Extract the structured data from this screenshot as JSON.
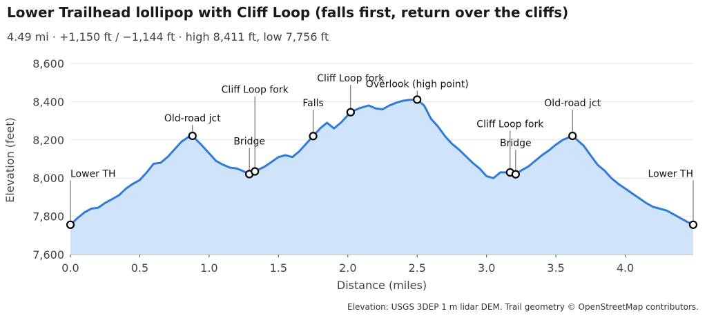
{
  "chart_data": {
    "type": "area",
    "title": "Lower Trailhead lollipop with Cliff Loop (falls first, return over the cliffs)",
    "subtitle": "4.49 mi · +1,150 ft / −1,144 ft · high 8,411 ft, low 7,756 ft",
    "xlabel": "Distance (miles)",
    "ylabel": "Elevation (feet)",
    "xlim": [
      0,
      4.49
    ],
    "ylim": [
      7600,
      8600
    ],
    "xticks": [
      0.0,
      0.5,
      1.0,
      1.5,
      2.0,
      2.5,
      3.0,
      3.5,
      4.0
    ],
    "xtick_labels": [
      "0.0",
      "0.5",
      "1.0",
      "1.5",
      "2.0",
      "2.5",
      "3.0",
      "3.5",
      "4.0"
    ],
    "yticks": [
      7600,
      7800,
      8000,
      8200,
      8400,
      8600
    ],
    "ytick_labels": [
      "7,600",
      "7,800",
      "8,000",
      "8,200",
      "8,400",
      "8,600"
    ],
    "grid": "horizontal",
    "footer": "Elevation: USGS 3DEP 1 m lidar DEM.  Trail geometry © OpenStreetMap contributors.",
    "colors": {
      "line": "#2f7bd6",
      "fill": "#cfe3fa",
      "grid": "#e6e6e6"
    },
    "series": [
      {
        "x": [
          0.0,
          0.05,
          0.1,
          0.15,
          0.2,
          0.25,
          0.3,
          0.35,
          0.4,
          0.45,
          0.5,
          0.55,
          0.6,
          0.65,
          0.7,
          0.75,
          0.8,
          0.85,
          0.88,
          0.95,
          1.0,
          1.05,
          1.1,
          1.15,
          1.2,
          1.25,
          1.29,
          1.33,
          1.4,
          1.45,
          1.5,
          1.55,
          1.6,
          1.65,
          1.7,
          1.75,
          1.8,
          1.85,
          1.9,
          1.95,
          2.02,
          2.08,
          2.15,
          2.2,
          2.25,
          2.3,
          2.35,
          2.4,
          2.45,
          2.5,
          2.55,
          2.6,
          2.65,
          2.7,
          2.75,
          2.8,
          2.85,
          2.9,
          2.95,
          3.0,
          3.05,
          3.1,
          3.17,
          3.21,
          3.25,
          3.3,
          3.35,
          3.4,
          3.45,
          3.5,
          3.55,
          3.62,
          3.7,
          3.75,
          3.8,
          3.85,
          3.9,
          3.95,
          4.0,
          4.05,
          4.1,
          4.15,
          4.2,
          4.25,
          4.3,
          4.35,
          4.4,
          4.45,
          4.49
        ],
        "y": [
          7756,
          7790,
          7820,
          7840,
          7845,
          7870,
          7890,
          7910,
          7945,
          7970,
          7990,
          8030,
          8075,
          8080,
          8110,
          8150,
          8190,
          8215,
          8221,
          8170,
          8130,
          8090,
          8070,
          8055,
          8050,
          8035,
          8021,
          8035,
          8060,
          8085,
          8110,
          8120,
          8110,
          8140,
          8180,
          8220,
          8260,
          8290,
          8260,
          8290,
          8345,
          8365,
          8380,
          8365,
          8360,
          8380,
          8395,
          8405,
          8410,
          8411,
          8380,
          8310,
          8270,
          8220,
          8180,
          8150,
          8115,
          8080,
          8050,
          8010,
          8000,
          8030,
          8030,
          8020,
          8040,
          8060,
          8090,
          8120,
          8145,
          8175,
          8200,
          8221,
          8170,
          8120,
          8070,
          8040,
          8000,
          7970,
          7945,
          7920,
          7895,
          7870,
          7850,
          7840,
          7830,
          7810,
          7790,
          7770,
          7756
        ]
      }
    ],
    "annotations": [
      {
        "label": "Lower TH",
        "x": 0.0,
        "y": 7756,
        "label_y": 8006,
        "anchor": "start"
      },
      {
        "label": "Old-road jct",
        "x": 0.88,
        "y": 8221,
        "label_y": 8296,
        "anchor": "middle"
      },
      {
        "label": "Bridge",
        "x": 1.29,
        "y": 8021,
        "label_y": 8176,
        "anchor": "middle"
      },
      {
        "label": "Cliff Loop fork",
        "x": 1.33,
        "y": 8035,
        "label_y": 8446,
        "anchor": "middle"
      },
      {
        "label": "Falls",
        "x": 1.75,
        "y": 8220,
        "label_y": 8376,
        "anchor": "middle"
      },
      {
        "label": "Cliff Loop fork",
        "x": 2.02,
        "y": 8345,
        "label_y": 8506,
        "anchor": "middle"
      },
      {
        "label": "Overlook (high point)",
        "x": 2.5,
        "y": 8411,
        "label_y": 8476,
        "anchor": "middle"
      },
      {
        "label": "Cliff Loop fork",
        "x": 3.17,
        "y": 8030,
        "label_y": 8266,
        "anchor": "middle"
      },
      {
        "label": "Bridge",
        "x": 3.21,
        "y": 8020,
        "label_y": 8166,
        "anchor": "middle"
      },
      {
        "label": "Old-road jct",
        "x": 3.62,
        "y": 8221,
        "label_y": 8376,
        "anchor": "middle"
      },
      {
        "label": "Lower TH",
        "x": 4.49,
        "y": 7756,
        "label_y": 8006,
        "anchor": "end"
      }
    ]
  }
}
